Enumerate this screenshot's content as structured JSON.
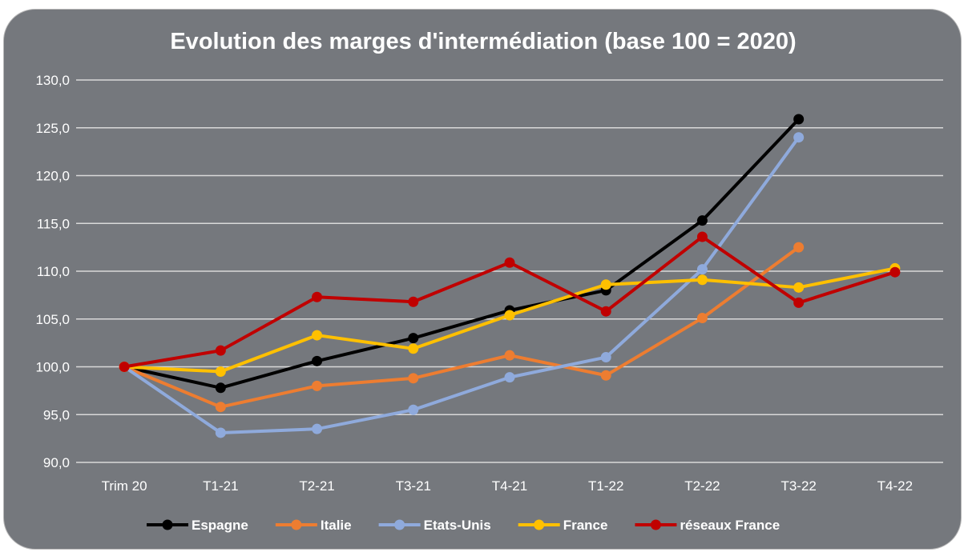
{
  "chart_data": {
    "type": "line",
    "title": "Evolution des marges d'intermédiation (base 100 = 2020)",
    "categories": [
      "Trim 20",
      "T1-21",
      "T2-21",
      "T3-21",
      "T4-21",
      "T1-22",
      "T2-22",
      "T3-22",
      "T4-22"
    ],
    "ylim": [
      90,
      130
    ],
    "yticks": [
      90,
      95,
      100,
      105,
      110,
      115,
      120,
      125,
      130
    ],
    "ytick_labels": [
      "90,0",
      "95,0",
      "100,0",
      "105,0",
      "110,0",
      "115,0",
      "120,0",
      "125,0",
      "130,0"
    ],
    "grid": true,
    "legend_position": "bottom",
    "series": [
      {
        "name": "Espagne",
        "color": "#000000",
        "values": [
          100.0,
          97.8,
          100.6,
          103.0,
          105.9,
          108.0,
          115.3,
          125.9,
          null
        ]
      },
      {
        "name": "Italie",
        "color": "#ed7d31",
        "values": [
          100.0,
          95.8,
          98.0,
          98.8,
          101.2,
          99.1,
          105.1,
          112.5,
          null
        ]
      },
      {
        "name": "Etats-Unis",
        "color": "#8faadc",
        "values": [
          100.0,
          93.1,
          93.5,
          95.5,
          98.9,
          101.0,
          110.2,
          124.0,
          null
        ]
      },
      {
        "name": "France",
        "color": "#ffc000",
        "values": [
          100.0,
          99.5,
          103.3,
          101.9,
          105.4,
          108.6,
          109.1,
          108.3,
          110.3
        ]
      },
      {
        "name": "réseaux France",
        "color": "#c00000",
        "values": [
          100.0,
          101.7,
          107.3,
          106.8,
          110.9,
          105.8,
          113.6,
          106.7,
          109.9
        ]
      }
    ]
  }
}
